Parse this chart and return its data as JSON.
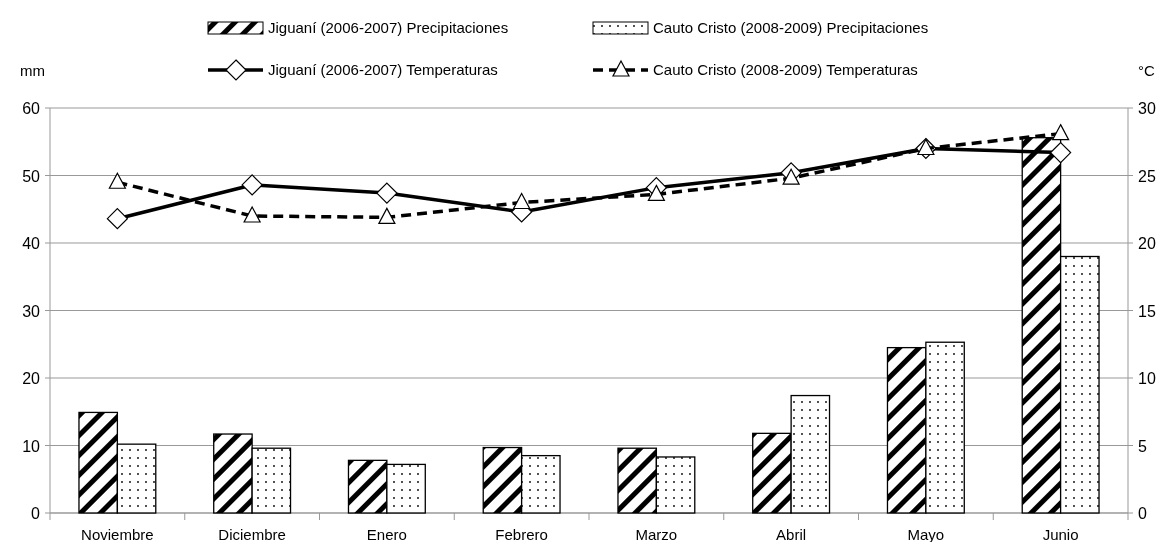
{
  "chart_data": {
    "type": "bar",
    "ylabel": "mm",
    "y2label": "°C",
    "categories": [
      "Noviembre",
      "Diciembre",
      "Enero",
      "Febrero",
      "Marzo",
      "Abril",
      "Mayo",
      "Junio"
    ],
    "series": [
      {
        "name": "Jiguaní (2006-2007) Precipitaciones",
        "color": "#000000",
        "values": [
          14.9,
          11.7,
          7.8,
          9.7,
          9.6,
          11.8,
          24.5,
          55.6
        ]
      },
      {
        "name": "Cauto Cristo (2008-2009) Precipitaciones",
        "color": "#000000",
        "values": [
          10.2,
          9.6,
          7.2,
          8.5,
          8.3,
          17.4,
          25.3,
          38.0
        ]
      },
      {
        "name": "Jiguaní (2006-2007) Temperaturas",
        "type": "line",
        "axis": "y2",
        "color": "#000000",
        "marker": "diamond",
        "line_style": "solid",
        "values": [
          21.8,
          24.3,
          23.7,
          22.3,
          24.1,
          25.2,
          27.0,
          26.7
        ]
      },
      {
        "name": "Cauto Cristo (2008-2009) Temperaturas",
        "type": "line",
        "axis": "y2",
        "color": "#000000",
        "marker": "triangle",
        "line_style": "dashed",
        "values": [
          24.5,
          22.0,
          21.9,
          23.0,
          23.6,
          24.8,
          27.0,
          28.1
        ]
      }
    ],
    "ylim": [
      0,
      60
    ],
    "yticks": [
      0,
      10,
      20,
      30,
      40,
      50,
      60
    ],
    "y2lim": [
      0,
      30
    ],
    "y2ticks": [
      0,
      5,
      10,
      15,
      20,
      25,
      30
    ],
    "grid": "y",
    "legend": "top"
  }
}
